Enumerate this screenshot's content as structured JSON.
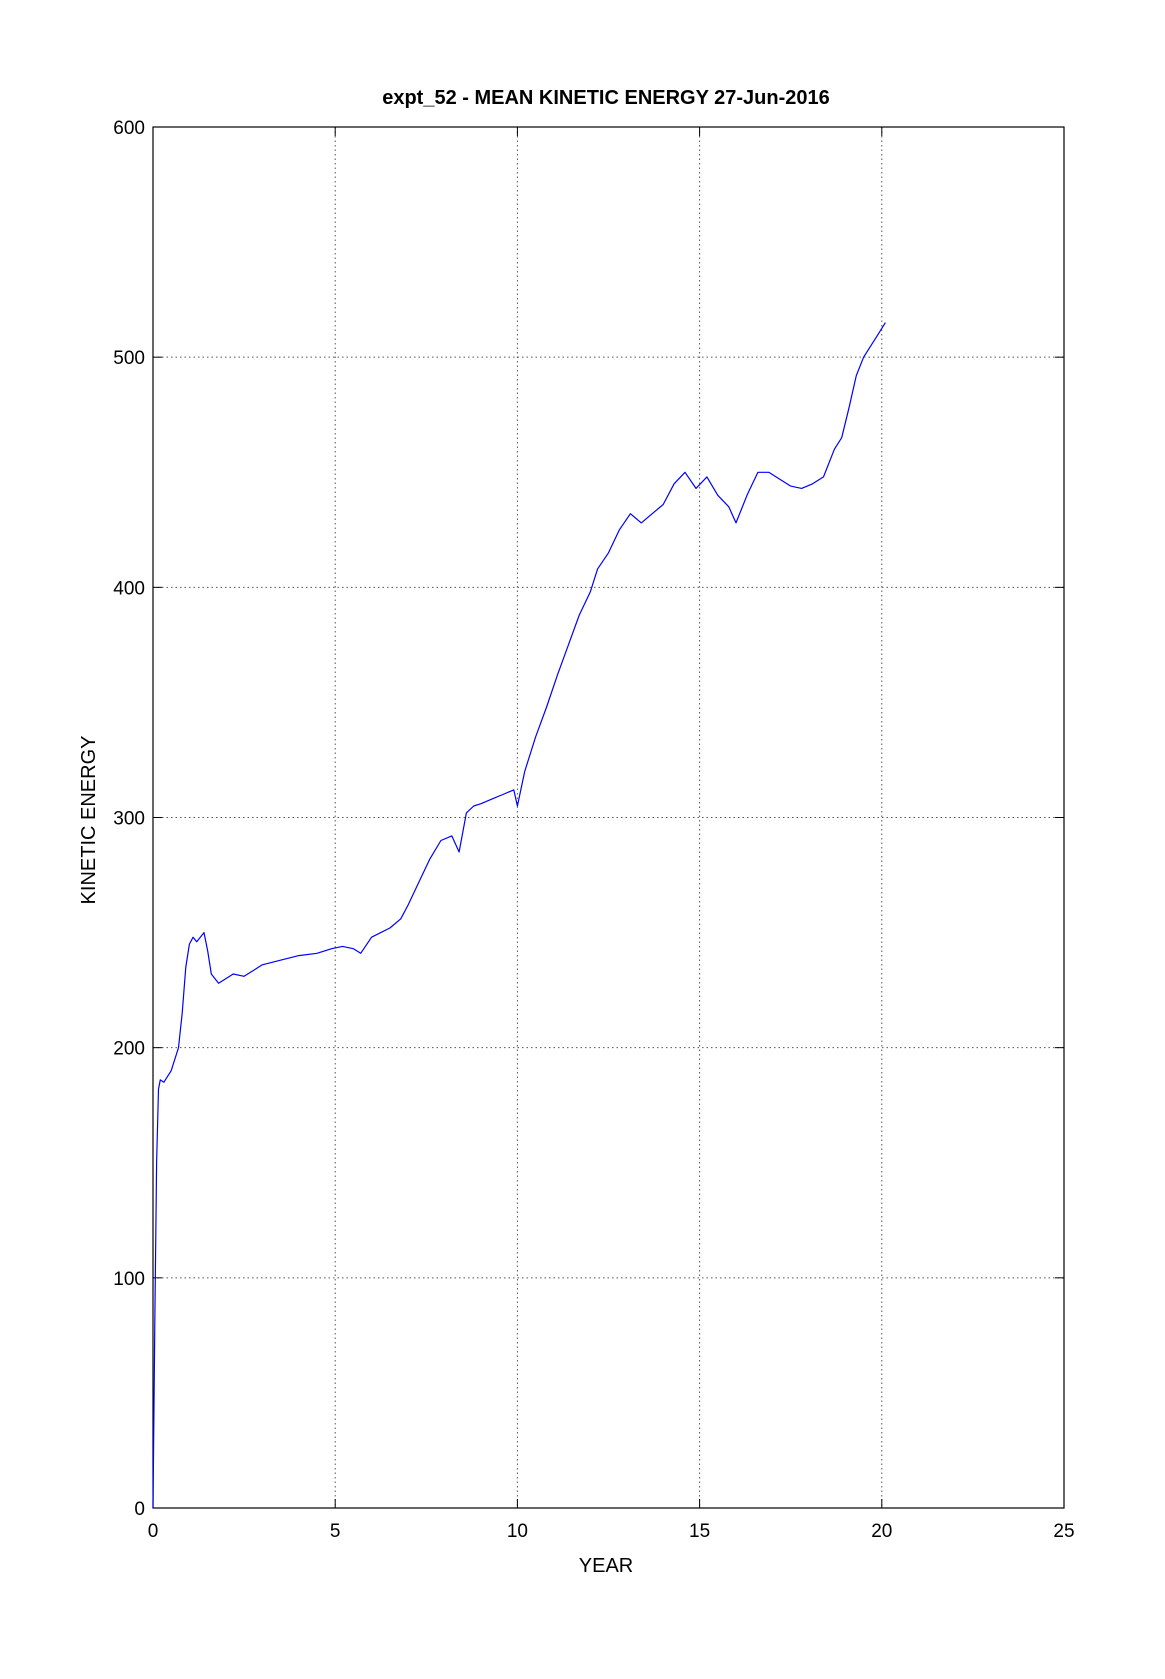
{
  "chart_data": {
    "type": "line",
    "title": "expt_52 - MEAN KINETIC ENERGY 27-Jun-2016",
    "xlabel": "YEAR",
    "ylabel": "KINETIC ENERGY",
    "xlim": [
      0,
      25
    ],
    "ylim": [
      0,
      600
    ],
    "xticks": [
      0,
      5,
      10,
      15,
      20,
      25
    ],
    "yticks": [
      0,
      100,
      200,
      300,
      400,
      500,
      600
    ],
    "xtick_labels": [
      "0",
      "5",
      "10",
      "15",
      "20",
      "25"
    ],
    "ytick_labels": [
      "0",
      "100",
      "200",
      "300",
      "400",
      "500",
      "600"
    ],
    "grid": true,
    "color": "#0000ff",
    "x": [
      0,
      0.05,
      0.1,
      0.15,
      0.2,
      0.3,
      0.5,
      0.7,
      0.8,
      0.9,
      1.0,
      1.1,
      1.2,
      1.4,
      1.5,
      1.6,
      1.8,
      2.0,
      2.2,
      2.5,
      3.0,
      3.5,
      4.0,
      4.5,
      4.9,
      5.2,
      5.5,
      5.7,
      6.0,
      6.5,
      6.8,
      7.0,
      7.3,
      7.6,
      7.9,
      8.2,
      8.4,
      8.6,
      8.8,
      9.0,
      9.3,
      9.6,
      9.9,
      10.0,
      10.2,
      10.5,
      10.8,
      11.1,
      11.4,
      11.7,
      12.0,
      12.2,
      12.5,
      12.8,
      13.1,
      13.4,
      13.7,
      14.0,
      14.3,
      14.6,
      14.9,
      15.2,
      15.5,
      15.8,
      16.0,
      16.3,
      16.6,
      16.9,
      17.2,
      17.5,
      17.8,
      18.1,
      18.4,
      18.7,
      18.9,
      19.1,
      19.3,
      19.5,
      19.7,
      19.9,
      20.1
    ],
    "y": [
      0,
      80,
      150,
      182,
      186,
      185,
      190,
      200,
      215,
      235,
      245,
      248,
      246,
      250,
      242,
      232,
      228,
      230,
      232,
      231,
      236,
      238,
      240,
      241,
      243,
      244,
      243,
      241,
      248,
      252,
      256,
      262,
      272,
      282,
      290,
      292,
      285,
      302,
      305,
      306,
      308,
      310,
      312,
      305,
      320,
      335,
      348,
      362,
      375,
      388,
      398,
      408,
      415,
      425,
      432,
      428,
      432,
      436,
      445,
      450,
      443,
      448,
      440,
      435,
      428,
      440,
      450,
      450,
      447,
      444,
      443,
      445,
      448,
      460,
      465,
      478,
      492,
      500,
      505,
      510,
      515
    ]
  }
}
